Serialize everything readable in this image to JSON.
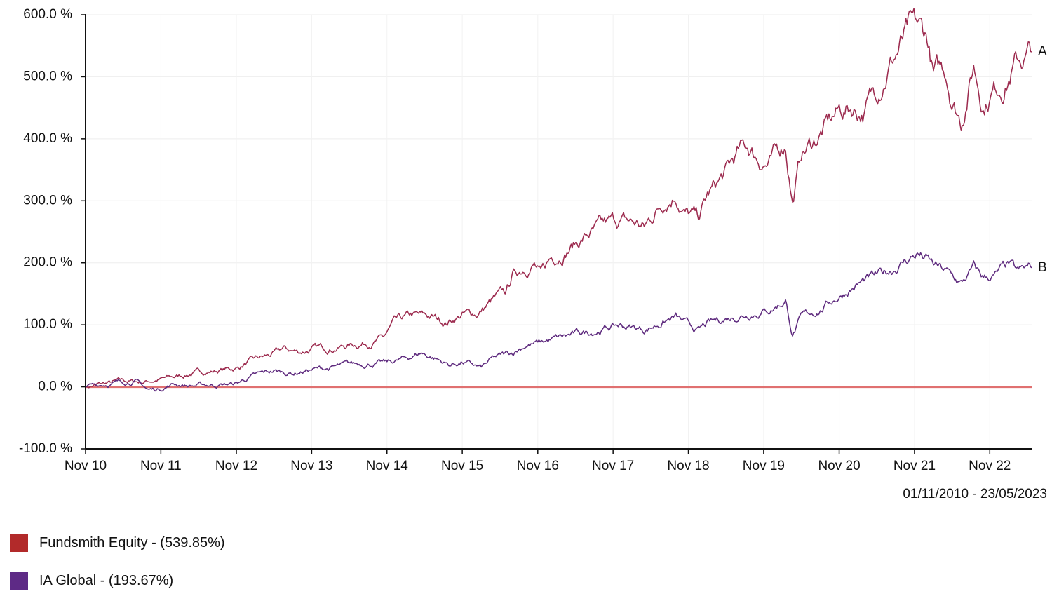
{
  "chart_data": {
    "type": "line",
    "title": "",
    "date_range": "01/11/2010 - 23/05/2023",
    "y_axis": {
      "min": -100,
      "max": 600,
      "ticks": [
        -100,
        0,
        100,
        200,
        300,
        400,
        500,
        600
      ],
      "tick_labels": [
        "-100.0 %",
        "0.0 %",
        "100.0 %",
        "200.0 %",
        "300.0 %",
        "400.0 %",
        "500.0 %",
        "600.0 %"
      ]
    },
    "x_axis": {
      "min": "2010-11-01",
      "max": "2023-05-23",
      "ticks": [
        "2010-11-01",
        "2011-11-01",
        "2012-11-01",
        "2013-11-01",
        "2014-11-01",
        "2015-11-01",
        "2016-11-01",
        "2017-11-01",
        "2018-11-01",
        "2019-11-01",
        "2020-11-01",
        "2021-11-01",
        "2022-11-01"
      ],
      "tick_labels": [
        "Nov 10",
        "Nov 11",
        "Nov 12",
        "Nov 13",
        "Nov 14",
        "Nov 15",
        "Nov 16",
        "Nov 17",
        "Nov 18",
        "Nov 19",
        "Nov 20",
        "Nov 21",
        "Nov 22"
      ]
    },
    "grid": true,
    "legend_position": "bottom-left",
    "baseline": {
      "value": 0,
      "color": "#e07070"
    },
    "series": [
      {
        "name": "Fundsmith Equity - (539.85%)",
        "end_label": "A",
        "color": "#9c2a4e",
        "legend_color": "#b22a2a",
        "points": [
          [
            "2010-11-01",
            0
          ],
          [
            "2011-02-01",
            5
          ],
          [
            "2011-05-01",
            9
          ],
          [
            "2011-08-01",
            8
          ],
          [
            "2011-10-01",
            11
          ],
          [
            "2012-01-01",
            15
          ],
          [
            "2012-04-01",
            22
          ],
          [
            "2012-07-01",
            25
          ],
          [
            "2012-11-01",
            30
          ],
          [
            "2013-01-01",
            40
          ],
          [
            "2013-05-01",
            52
          ],
          [
            "2013-06-15",
            60
          ],
          [
            "2013-09-01",
            56
          ],
          [
            "2013-11-01",
            61
          ],
          [
            "2014-02-01",
            63
          ],
          [
            "2014-05-01",
            67
          ],
          [
            "2014-08-01",
            72
          ],
          [
            "2014-10-15",
            78
          ],
          [
            "2014-12-01",
            100
          ],
          [
            "2015-03-01",
            113
          ],
          [
            "2015-06-01",
            112
          ],
          [
            "2015-08-15",
            104
          ],
          [
            "2015-11-01",
            117
          ],
          [
            "2016-01-15",
            118
          ],
          [
            "2016-04-01",
            140
          ],
          [
            "2016-06-01",
            150
          ],
          [
            "2016-07-01",
            178
          ],
          [
            "2016-09-01",
            195
          ],
          [
            "2016-10-15",
            200
          ],
          [
            "2016-11-15",
            178
          ],
          [
            "2017-01-01",
            205
          ],
          [
            "2017-04-01",
            225
          ],
          [
            "2017-07-01",
            245
          ],
          [
            "2017-10-01",
            258
          ],
          [
            "2017-12-01",
            267
          ],
          [
            "2018-03-01",
            262
          ],
          [
            "2018-04-01",
            255
          ],
          [
            "2018-07-01",
            300
          ],
          [
            "2018-09-01",
            315
          ],
          [
            "2018-10-15",
            282
          ],
          [
            "2018-12-20",
            270
          ],
          [
            "2019-02-01",
            305
          ],
          [
            "2019-05-01",
            342
          ],
          [
            "2019-07-01",
            375
          ],
          [
            "2019-08-15",
            385
          ],
          [
            "2019-10-01",
            370
          ],
          [
            "2019-12-01",
            360
          ],
          [
            "2020-02-15",
            393
          ],
          [
            "2020-03-20",
            300
          ],
          [
            "2020-05-01",
            375
          ],
          [
            "2020-07-01",
            395
          ],
          [
            "2020-09-01",
            420
          ],
          [
            "2020-11-01",
            443
          ],
          [
            "2021-01-01",
            450
          ],
          [
            "2021-03-01",
            445
          ],
          [
            "2021-05-01",
            480
          ],
          [
            "2021-07-01",
            522
          ],
          [
            "2021-08-15",
            545
          ],
          [
            "2021-10-01",
            568
          ],
          [
            "2021-11-15",
            572
          ],
          [
            "2022-01-01",
            560
          ],
          [
            "2022-02-01",
            500
          ],
          [
            "2022-04-01",
            510
          ],
          [
            "2022-05-01",
            470
          ],
          [
            "2022-06-15",
            432
          ],
          [
            "2022-08-15",
            520
          ],
          [
            "2022-10-01",
            460
          ],
          [
            "2022-11-15",
            480
          ],
          [
            "2023-01-15",
            495
          ],
          [
            "2023-03-01",
            520
          ],
          [
            "2023-04-15",
            530
          ],
          [
            "2023-05-23",
            540
          ]
        ]
      },
      {
        "name": "IA Global - (193.67%)",
        "end_label": "B",
        "color": "#5e2a7e",
        "legend_color": "#5e2a86",
        "points": [
          [
            "2010-11-01",
            0
          ],
          [
            "2011-02-01",
            5
          ],
          [
            "2011-05-01",
            8
          ],
          [
            "2011-07-01",
            10
          ],
          [
            "2011-09-01",
            -5
          ],
          [
            "2011-10-15",
            -4
          ],
          [
            "2012-01-01",
            5
          ],
          [
            "2012-04-01",
            2
          ],
          [
            "2012-07-01",
            3
          ],
          [
            "2012-11-01",
            5
          ],
          [
            "2013-01-01",
            15
          ],
          [
            "2013-05-01",
            25
          ],
          [
            "2013-08-01",
            22
          ],
          [
            "2013-11-01",
            28
          ],
          [
            "2014-02-01",
            30
          ],
          [
            "2014-05-01",
            35
          ],
          [
            "2014-08-01",
            38
          ],
          [
            "2014-11-01",
            38
          ],
          [
            "2015-02-01",
            45
          ],
          [
            "2015-04-15",
            55
          ],
          [
            "2015-07-01",
            45
          ],
          [
            "2015-09-01",
            35
          ],
          [
            "2015-11-01",
            40
          ],
          [
            "2016-02-01",
            30
          ],
          [
            "2016-04-01",
            45
          ],
          [
            "2016-07-01",
            55
          ],
          [
            "2016-09-01",
            68
          ],
          [
            "2016-11-01",
            70
          ],
          [
            "2017-01-01",
            75
          ],
          [
            "2017-04-01",
            82
          ],
          [
            "2017-07-01",
            88
          ],
          [
            "2017-10-01",
            95
          ],
          [
            "2017-12-01",
            99
          ],
          [
            "2018-02-15",
            95
          ],
          [
            "2018-04-01",
            92
          ],
          [
            "2018-07-01",
            105
          ],
          [
            "2018-09-01",
            112
          ],
          [
            "2018-10-20",
            100
          ],
          [
            "2018-12-20",
            90
          ],
          [
            "2019-02-01",
            100
          ],
          [
            "2019-05-01",
            110
          ],
          [
            "2019-08-01",
            118
          ],
          [
            "2019-10-01",
            122
          ],
          [
            "2019-12-01",
            125
          ],
          [
            "2020-02-15",
            140
          ],
          [
            "2020-03-20",
            85
          ],
          [
            "2020-05-01",
            110
          ],
          [
            "2020-08-01",
            125
          ],
          [
            "2020-10-01",
            140
          ],
          [
            "2020-11-15",
            150
          ],
          [
            "2021-01-01",
            160
          ],
          [
            "2021-03-01",
            170
          ],
          [
            "2021-06-01",
            180
          ],
          [
            "2021-09-01",
            200
          ],
          [
            "2021-11-15",
            215
          ],
          [
            "2022-01-01",
            205
          ],
          [
            "2022-02-01",
            195
          ],
          [
            "2022-04-01",
            185
          ],
          [
            "2022-06-15",
            165
          ],
          [
            "2022-08-15",
            190
          ],
          [
            "2022-10-01",
            175
          ],
          [
            "2022-12-01",
            180
          ],
          [
            "2023-02-01",
            195
          ],
          [
            "2023-03-15",
            182
          ],
          [
            "2023-05-23",
            192
          ]
        ]
      }
    ]
  }
}
